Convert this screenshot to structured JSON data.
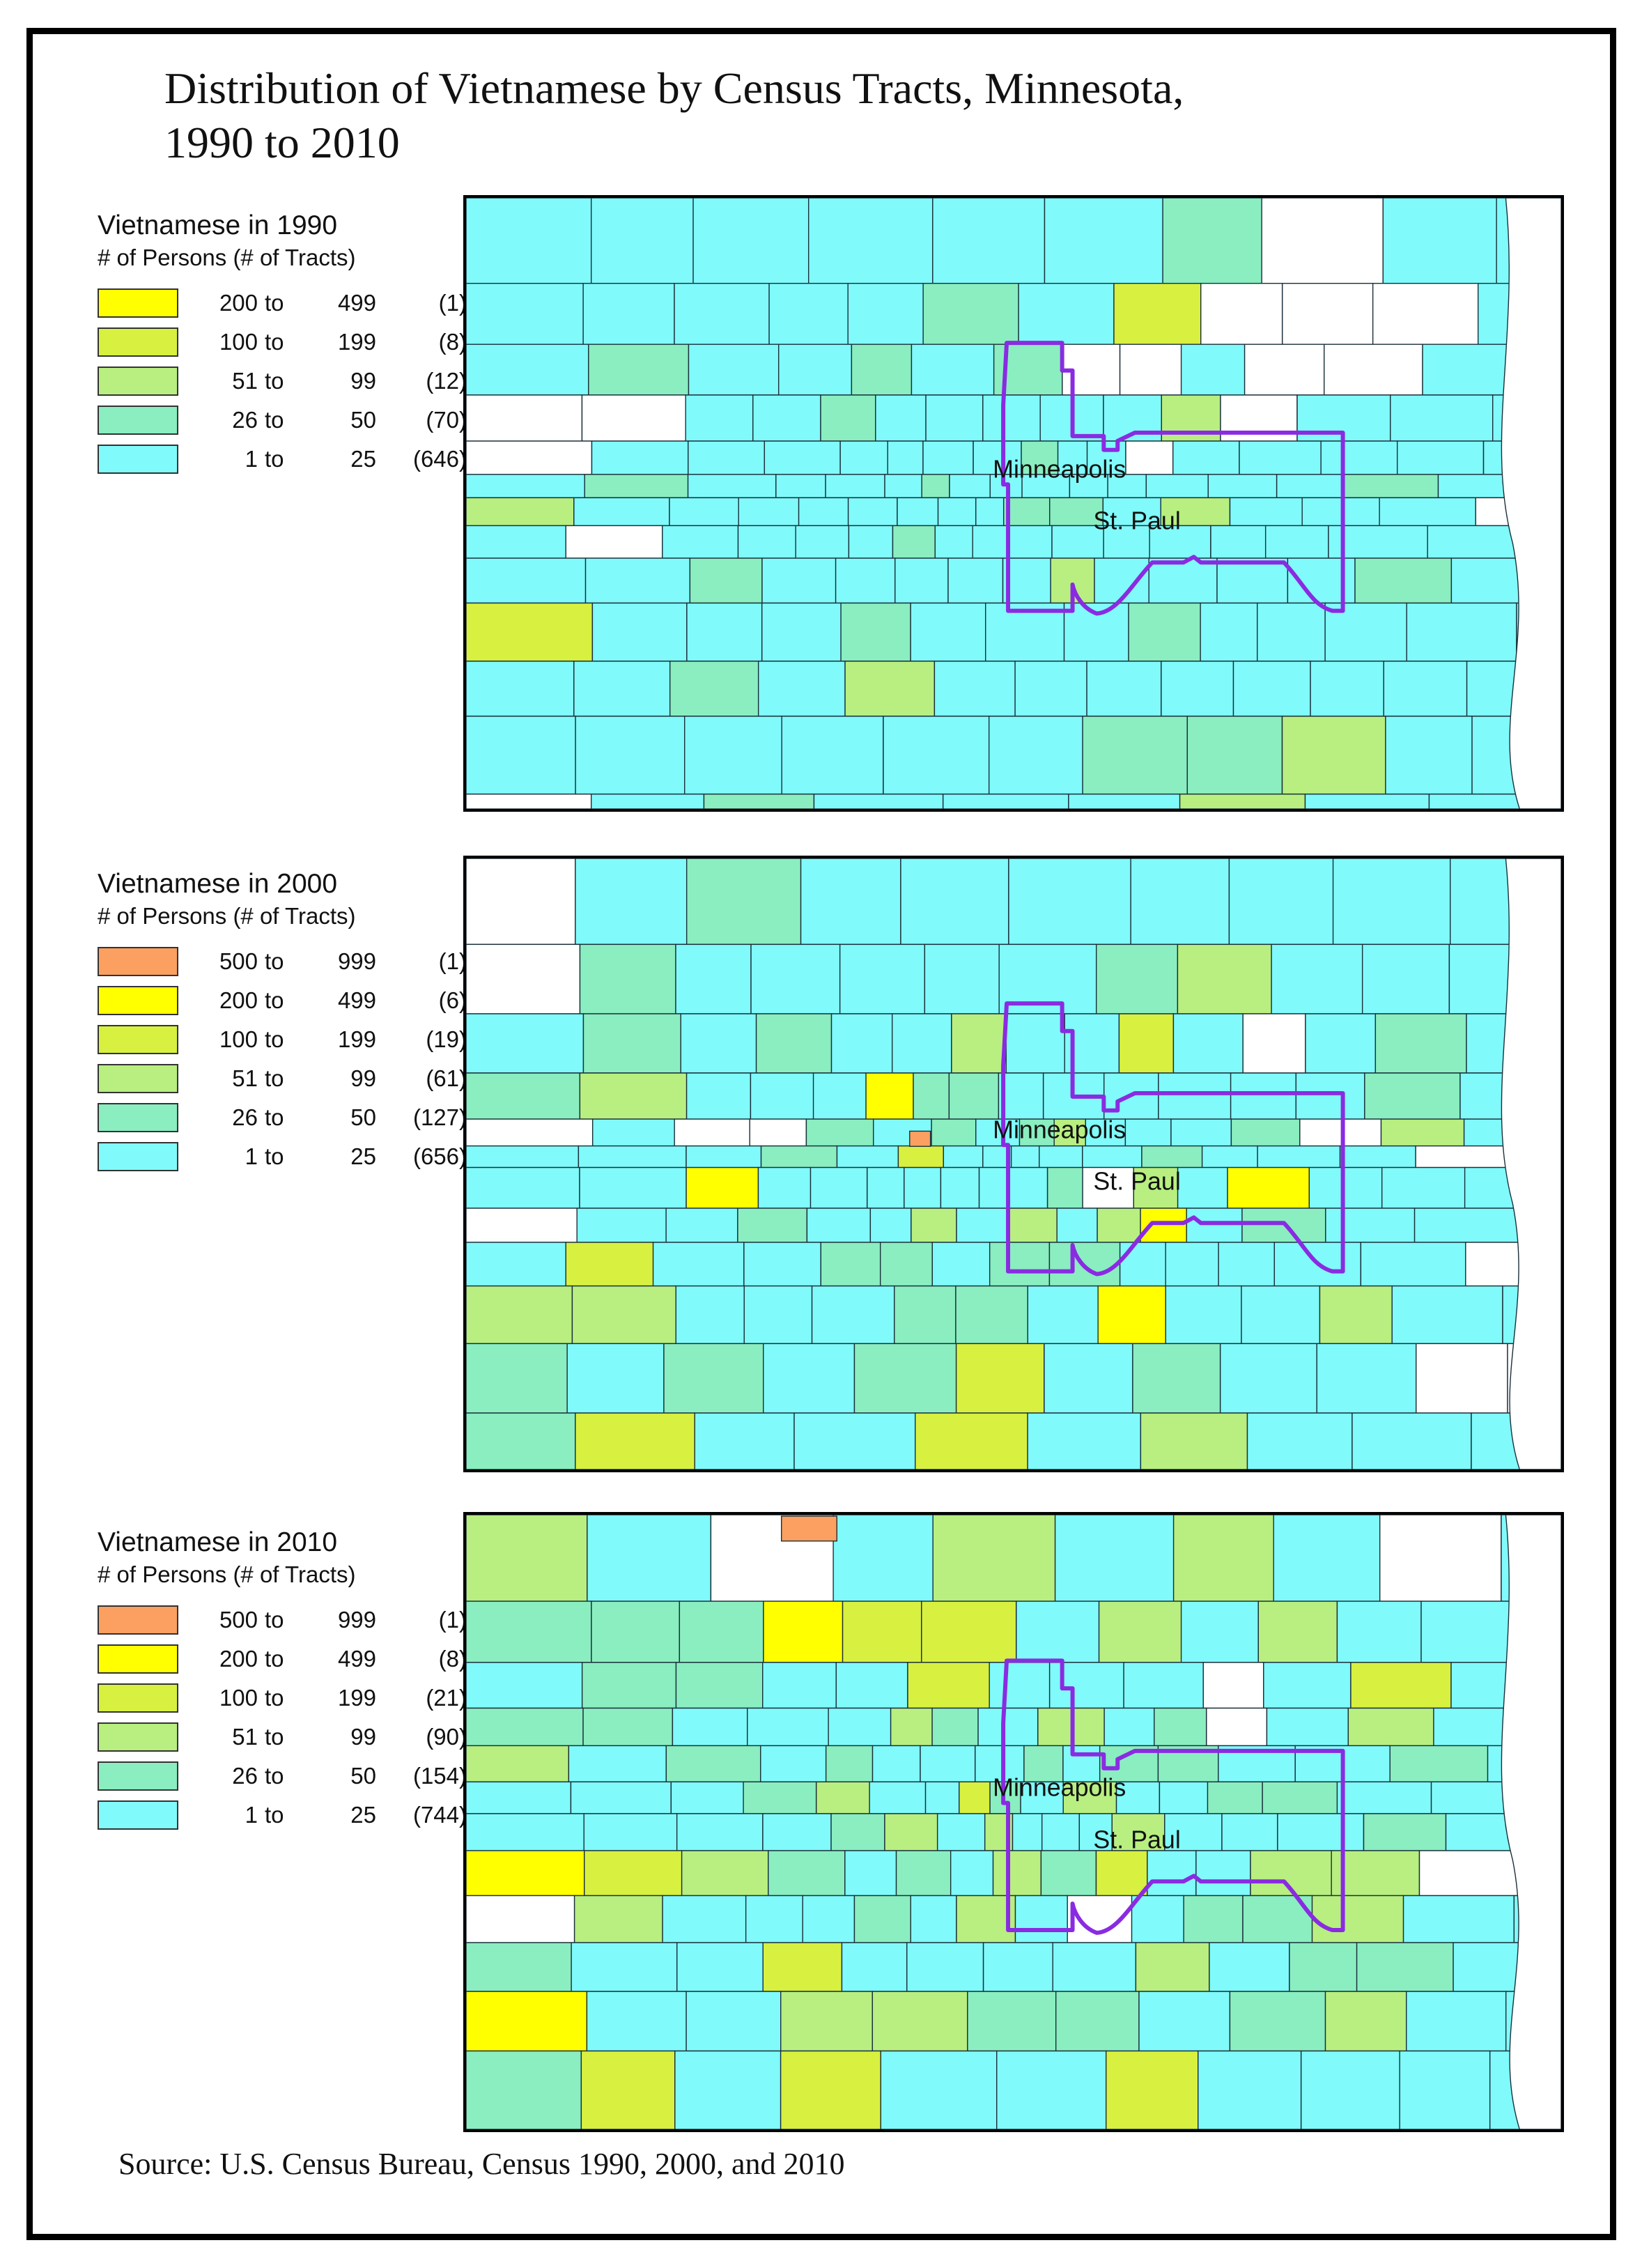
{
  "title_line1": "Distribution of Vietnamese by Census Tracts, Minnesota,",
  "title_line2": "1990 to 2010",
  "source": "Source: U.S. Census Bureau, Census 1990, 2000, and 2010",
  "colors": {
    "cyan": "#80fafa",
    "aqua_green": "#8aeec0",
    "light_green": "#b8ef80",
    "yellow_green": "#d8f040",
    "yellow": "#ffff00",
    "orange": "#fba060",
    "boundary": "#8a2be2",
    "tract_line": "#1a2f3a"
  },
  "panels": [
    {
      "legend_title": "Vietnamese in 1990",
      "legend_sub": "# of Persons (# of Tracts)",
      "rows": [
        {
          "lo": "200",
          "hi": "499",
          "count": "(1)",
          "color": "#ffff00"
        },
        {
          "lo": "100",
          "hi": "199",
          "count": "(8)",
          "color": "#d8f040"
        },
        {
          "lo": "51",
          "hi": "99",
          "count": "(12)",
          "color": "#b8ef80"
        },
        {
          "lo": "26",
          "hi": "50",
          "count": "(70)",
          "color": "#8aeec0"
        },
        {
          "lo": "1",
          "hi": "25",
          "count": "(646)",
          "color": "#80fafa"
        }
      ],
      "city1": "Minneapolis",
      "city2": "St. Paul"
    },
    {
      "legend_title": "Vietnamese in 2000",
      "legend_sub": "# of Persons (# of Tracts)",
      "rows": [
        {
          "lo": "500",
          "hi": "999",
          "count": "(1)",
          "color": "#fba060"
        },
        {
          "lo": "200",
          "hi": "499",
          "count": "(6)",
          "color": "#ffff00"
        },
        {
          "lo": "100",
          "hi": "199",
          "count": "(19)",
          "color": "#d8f040"
        },
        {
          "lo": "51",
          "hi": "99",
          "count": "(61)",
          "color": "#b8ef80"
        },
        {
          "lo": "26",
          "hi": "50",
          "count": "(127)",
          "color": "#8aeec0"
        },
        {
          "lo": "1",
          "hi": "25",
          "count": "(656)",
          "color": "#80fafa"
        }
      ],
      "city1": "Minneapolis",
      "city2": "St. Paul"
    },
    {
      "legend_title": "Vietnamese in 2010",
      "legend_sub": "# of Persons (# of Tracts)",
      "rows": [
        {
          "lo": "500",
          "hi": "999",
          "count": "(1)",
          "color": "#fba060"
        },
        {
          "lo": "200",
          "hi": "499",
          "count": "(8)",
          "color": "#ffff00"
        },
        {
          "lo": "100",
          "hi": "199",
          "count": "(21)",
          "color": "#d8f040"
        },
        {
          "lo": "51",
          "hi": "99",
          "count": "(90)",
          "color": "#b8ef80"
        },
        {
          "lo": "26",
          "hi": "50",
          "count": "(154)",
          "color": "#8aeec0"
        },
        {
          "lo": "1",
          "hi": "25",
          "count": "(744)",
          "color": "#80fafa"
        }
      ],
      "city1": "Minneapolis",
      "city2": "St. Paul"
    }
  ],
  "range_word": "to"
}
